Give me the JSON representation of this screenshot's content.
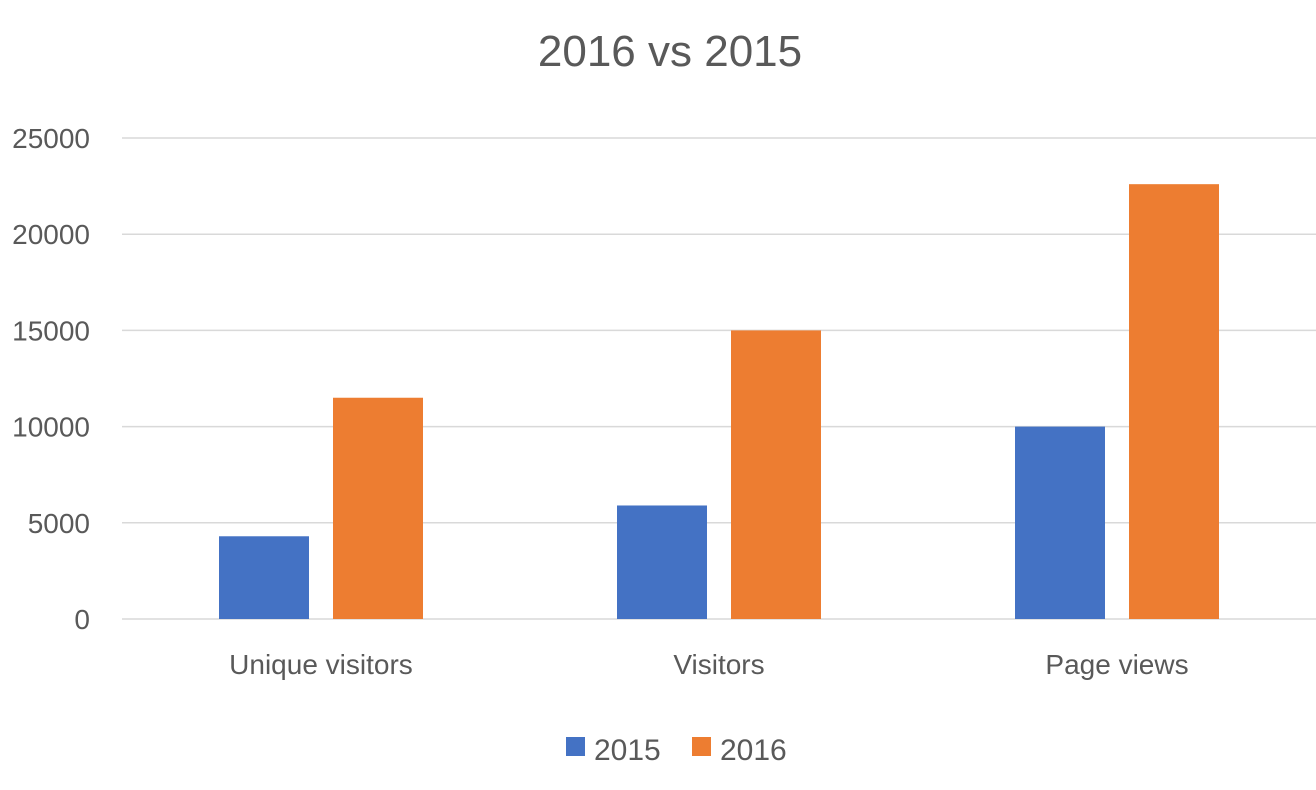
{
  "chart_data": {
    "type": "bar",
    "title": "2016 vs 2015",
    "xlabel": "",
    "ylabel": "",
    "categories": [
      "Unique visitors",
      "Visitors",
      "Page views"
    ],
    "series": [
      {
        "name": "2015",
        "color": "#4472c4",
        "values": [
          4300,
          5900,
          10000
        ]
      },
      {
        "name": "2016",
        "color": "#ed7d31",
        "values": [
          11500,
          15000,
          22600
        ]
      }
    ],
    "ylim": [
      0,
      25000
    ],
    "yticks": [
      0,
      5000,
      10000,
      15000,
      20000,
      25000
    ],
    "ytick_labels": [
      "0",
      "5000",
      "10000",
      "15000",
      "20000",
      "25000"
    ],
    "grid": true,
    "legend_position": "bottom"
  }
}
